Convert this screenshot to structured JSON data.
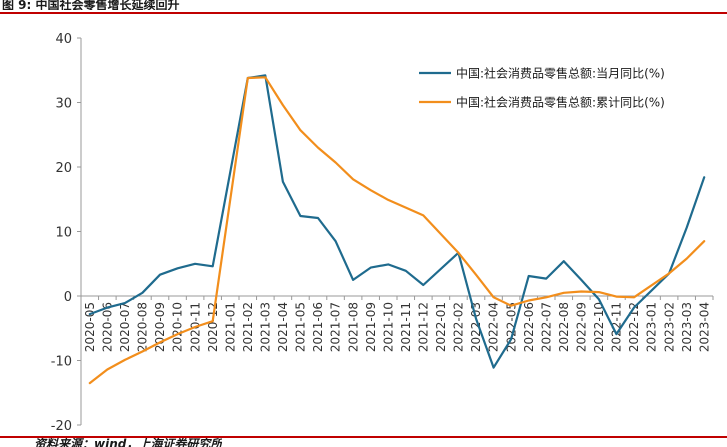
{
  "figure_title": "图 9: 中国社会零售增长延续回升",
  "source_text": "资料来源：wind，上海证券研究所",
  "colors": {
    "monthly": "#1f6b8e",
    "cumulative": "#f28e1c",
    "rule": "#c00000",
    "axis": "#999999"
  },
  "chart_data": {
    "type": "line",
    "title": "",
    "xlabel": "",
    "ylabel": "",
    "ylim": [
      -20,
      40
    ],
    "yticks": [
      -20,
      -10,
      0,
      10,
      20,
      30,
      40
    ],
    "grid": false,
    "legend_position": "top-right",
    "categories": [
      "2020-05",
      "2020-06",
      "2020-07",
      "2020-08",
      "2020-09",
      "2020-10",
      "2020-11",
      "2020-12",
      "2021-01",
      "2021-02",
      "2021-03",
      "2021-04",
      "2021-05",
      "2021-06",
      "2021-07",
      "2021-08",
      "2021-09",
      "2021-10",
      "2021-11",
      "2021-12",
      "2022-01",
      "2022-02",
      "2022-03",
      "2022-04",
      "2022-05",
      "2022-06",
      "2022-07",
      "2022-08",
      "2022-09",
      "2022-10",
      "2022-11",
      "2022-12",
      "2023-01",
      "2023-02",
      "2023-03",
      "2023-04"
    ],
    "series": [
      {
        "name": "中国:社会消费品零售总额:当月同比(%)",
        "values": [
          -2.8,
          -1.8,
          -1.1,
          0.5,
          3.3,
          4.3,
          5.0,
          4.6,
          null,
          33.8,
          34.2,
          17.7,
          12.4,
          12.1,
          8.5,
          2.5,
          4.4,
          4.9,
          3.9,
          1.7,
          null,
          6.7,
          -3.5,
          -11.1,
          -6.7,
          3.1,
          2.7,
          5.4,
          2.5,
          -0.5,
          -5.9,
          -1.8,
          null,
          3.5,
          10.6,
          18.4
        ]
      },
      {
        "name": "中国:社会消费品零售总额:累计同比(%)",
        "values": [
          -13.5,
          -11.4,
          -9.9,
          -8.6,
          -7.2,
          -5.9,
          -4.8,
          -3.9,
          null,
          33.8,
          33.9,
          29.6,
          25.7,
          23.0,
          20.7,
          18.1,
          16.4,
          14.9,
          13.7,
          12.5,
          null,
          6.7,
          3.3,
          -0.2,
          -1.5,
          -0.7,
          -0.2,
          0.5,
          0.7,
          0.6,
          -0.1,
          -0.2,
          null,
          3.5,
          5.8,
          8.5
        ]
      }
    ]
  }
}
